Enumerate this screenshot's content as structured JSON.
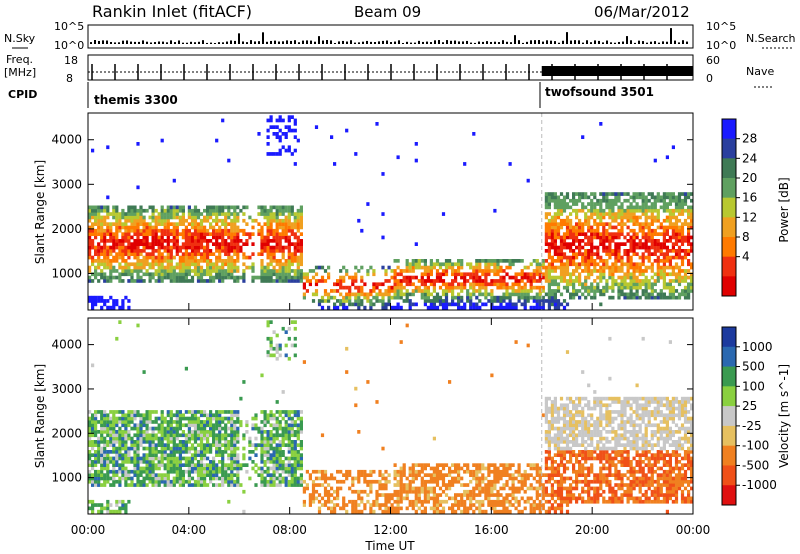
{
  "header": {
    "station": "Rankin Inlet (fitACF)",
    "beam": "Beam 09",
    "date": "06/Mar/2012"
  },
  "strip_labels": {
    "nsky": "N.Sky",
    "nsky_hi": "10^5",
    "nsky_lo": "10^0",
    "nsearch": "N.Search",
    "nsearch_hi": "10^5",
    "nsearch_lo": "10^0",
    "freq_1": "Freq.",
    "freq_2": "[MHz]",
    "freq_hi": "18",
    "freq_lo": "8",
    "nave": "Nave",
    "nave_hi": "60",
    "nave_lo": "0",
    "cpid": "CPID",
    "cpid_1": "themis 3300",
    "cpid_2": "twofsound 3501"
  },
  "colors": {
    "power": [
      "#1a1aff",
      "#2a3f9e",
      "#3f7a55",
      "#5fa060",
      "#b8c830",
      "#f0a020",
      "#ff7a00",
      "#f03010",
      "#e00000"
    ],
    "velocity": [
      "#1c3a9e",
      "#2a68b0",
      "#3a9a50",
      "#8ad040",
      "#c8c8c8",
      "#e6c060",
      "#f08020",
      "#f05018",
      "#e01010"
    ]
  },
  "chart_data": [
    {
      "type": "heatmap",
      "name": "power",
      "title": "",
      "xlabel": "",
      "ylabel": "Slant Range [km]",
      "xlim": [
        0,
        24
      ],
      "ylim": [
        180,
        4600
      ],
      "yticks": [
        1000,
        2000,
        3000,
        4000
      ],
      "ytick_labels": [
        "1000",
        "2000",
        "3000",
        "4000"
      ],
      "colorbar_label": "Power [dB]",
      "colorbar_ticks": [
        "4",
        "8",
        "12",
        "16",
        "20",
        "24",
        "28"
      ],
      "mode_change_hour": 18
    },
    {
      "type": "heatmap",
      "name": "velocity",
      "title": "",
      "xlabel": "Time UT",
      "ylabel": "Slant Range [km]",
      "xlim": [
        0,
        24
      ],
      "ylim": [
        180,
        4600
      ],
      "xticks": [
        0,
        4,
        8,
        12,
        16,
        20,
        24
      ],
      "xtick_labels": [
        "00:00",
        "04:00",
        "08:00",
        "12:00",
        "16:00",
        "20:00",
        "00:00"
      ],
      "yticks": [
        1000,
        2000,
        3000,
        4000
      ],
      "ytick_labels": [
        "1000",
        "2000",
        "3000",
        "4000"
      ],
      "colorbar_label": "Velocity [m s^-1]",
      "colorbar_ticks": [
        "1000",
        "500",
        "100",
        "25",
        "-25",
        "-100",
        "-500",
        "-1000"
      ],
      "mode_change_hour": 18
    }
  ]
}
